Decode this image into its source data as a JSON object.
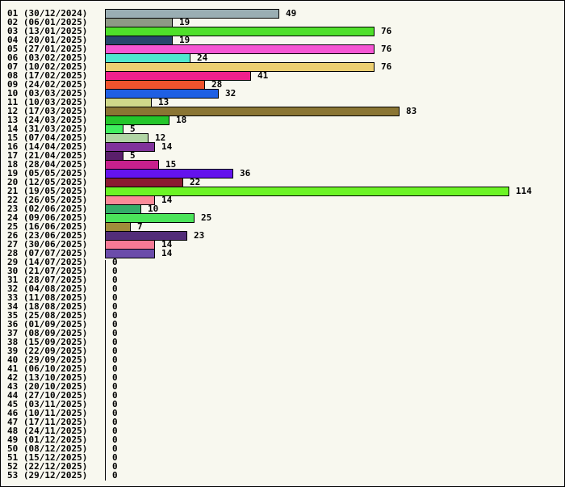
{
  "chart_data": {
    "type": "bar",
    "orientation": "horizontal",
    "title": "",
    "xlabel": "",
    "ylabel": "",
    "grid": false,
    "xlim": [
      0,
      114
    ],
    "categories": [
      "01 (30/12/2024)",
      "02 (06/01/2025)",
      "03 (13/01/2025)",
      "04 (20/01/2025)",
      "05 (27/01/2025)",
      "06 (03/02/2025)",
      "07 (10/02/2025)",
      "08 (17/02/2025)",
      "09 (24/02/2025)",
      "10 (03/03/2025)",
      "11 (10/03/2025)",
      "12 (17/03/2025)",
      "13 (24/03/2025)",
      "14 (31/03/2025)",
      "15 (07/04/2025)",
      "16 (14/04/2025)",
      "17 (21/04/2025)",
      "18 (28/04/2025)",
      "19 (05/05/2025)",
      "20 (12/05/2025)",
      "21 (19/05/2025)",
      "22 (26/05/2025)",
      "23 (02/06/2025)",
      "24 (09/06/2025)",
      "25 (16/06/2025)",
      "26 (23/06/2025)",
      "27 (30/06/2025)",
      "28 (07/07/2025)",
      "29 (14/07/2025)",
      "30 (21/07/2025)",
      "31 (28/07/2025)",
      "32 (04/08/2025)",
      "33 (11/08/2025)",
      "34 (18/08/2025)",
      "35 (25/08/2025)",
      "36 (01/09/2025)",
      "37 (08/09/2025)",
      "38 (15/09/2025)",
      "39 (22/09/2025)",
      "40 (29/09/2025)",
      "41 (06/10/2025)",
      "42 (13/10/2025)",
      "43 (20/10/2025)",
      "44 (27/10/2025)",
      "45 (03/11/2025)",
      "46 (10/11/2025)",
      "47 (17/11/2025)",
      "48 (24/11/2025)",
      "49 (01/12/2025)",
      "50 (08/12/2025)",
      "51 (15/12/2025)",
      "52 (22/12/2025)",
      "53 (29/12/2025)"
    ],
    "values": [
      49,
      19,
      76,
      19,
      76,
      24,
      76,
      41,
      28,
      32,
      13,
      83,
      18,
      5,
      12,
      14,
      5,
      15,
      36,
      22,
      114,
      14,
      10,
      25,
      7,
      23,
      14,
      14,
      0,
      0,
      0,
      0,
      0,
      0,
      0,
      0,
      0,
      0,
      0,
      0,
      0,
      0,
      0,
      0,
      0,
      0,
      0,
      0,
      0,
      0,
      0,
      0,
      0
    ],
    "colors": [
      "#9aaeb3",
      "#8e9986",
      "#4fe02a",
      "#27466d",
      "#f556d3",
      "#4fe7cf",
      "#eccf72",
      "#f0208c",
      "#f0532d",
      "#1f5fe3",
      "#cfd88a",
      "#8a7533",
      "#24c62b",
      "#40ef5f",
      "#b1d5a5",
      "#80339b",
      "#5a1f6b",
      "#c7208d",
      "#6413ed",
      "#8b1c31",
      "#6cf425",
      "#fb8a98",
      "#33ad68",
      "#4be45a",
      "#a08c3a",
      "#522d79",
      "#f67a95",
      "#6b4caa",
      "#000000",
      "#000000",
      "#000000",
      "#000000",
      "#000000",
      "#000000",
      "#000000",
      "#000000",
      "#000000",
      "#000000",
      "#000000",
      "#000000",
      "#000000",
      "#000000",
      "#000000",
      "#000000",
      "#000000",
      "#000000",
      "#000000",
      "#000000",
      "#000000",
      "#000000",
      "#000000",
      "#000000",
      "#000000"
    ],
    "background": "#f8f8ef",
    "border_color": "#000000"
  }
}
